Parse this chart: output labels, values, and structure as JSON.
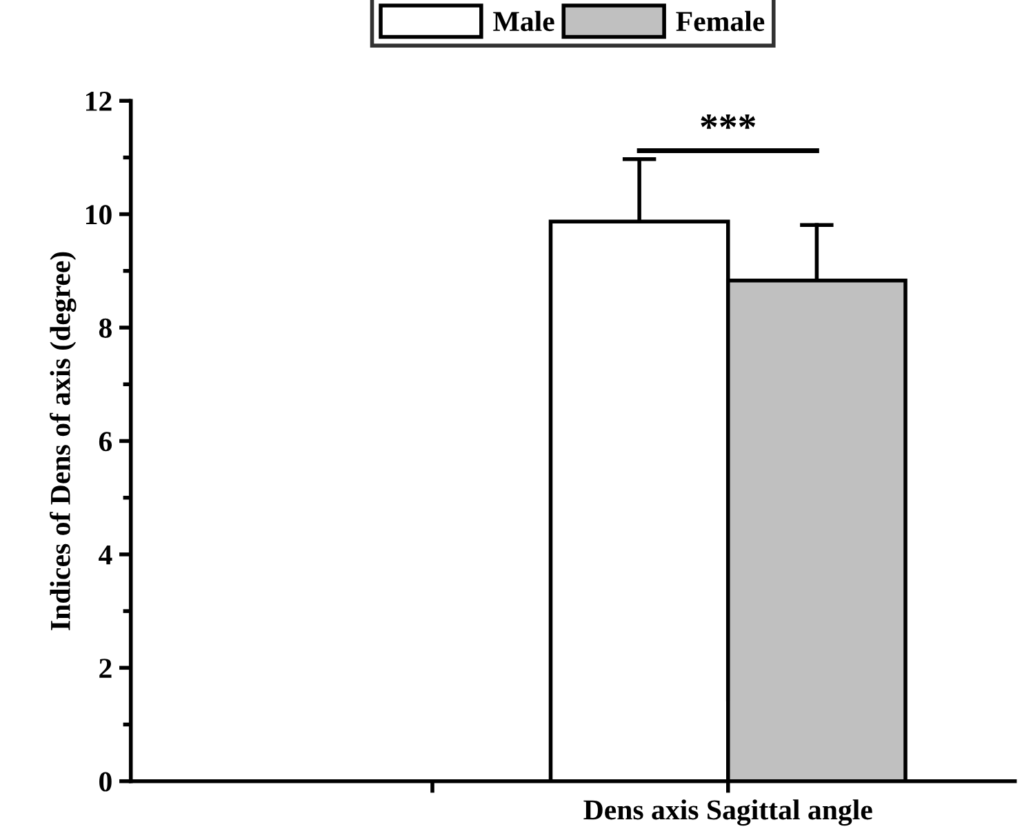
{
  "chart_data": {
    "type": "bar",
    "ylabel": "Indices of Dens of axis (degree)",
    "categories": [
      null,
      "Dens axis Sagittal angle"
    ],
    "series": [
      {
        "name": "Male",
        "color": "#ffffff",
        "values": [
          null,
          9.87
        ],
        "errors": [
          null,
          [
            9.87,
            10.97
          ]
        ]
      },
      {
        "name": "Female",
        "color": "#c0c0c0",
        "values": [
          null,
          8.83
        ],
        "errors": [
          null,
          [
            8.83,
            9.81
          ]
        ]
      }
    ],
    "ylim": [
      0,
      12
    ],
    "yticks": [
      0,
      2,
      4,
      6,
      8,
      10,
      12
    ],
    "grid": false,
    "legend": "top",
    "annotations": [
      "***"
    ]
  }
}
